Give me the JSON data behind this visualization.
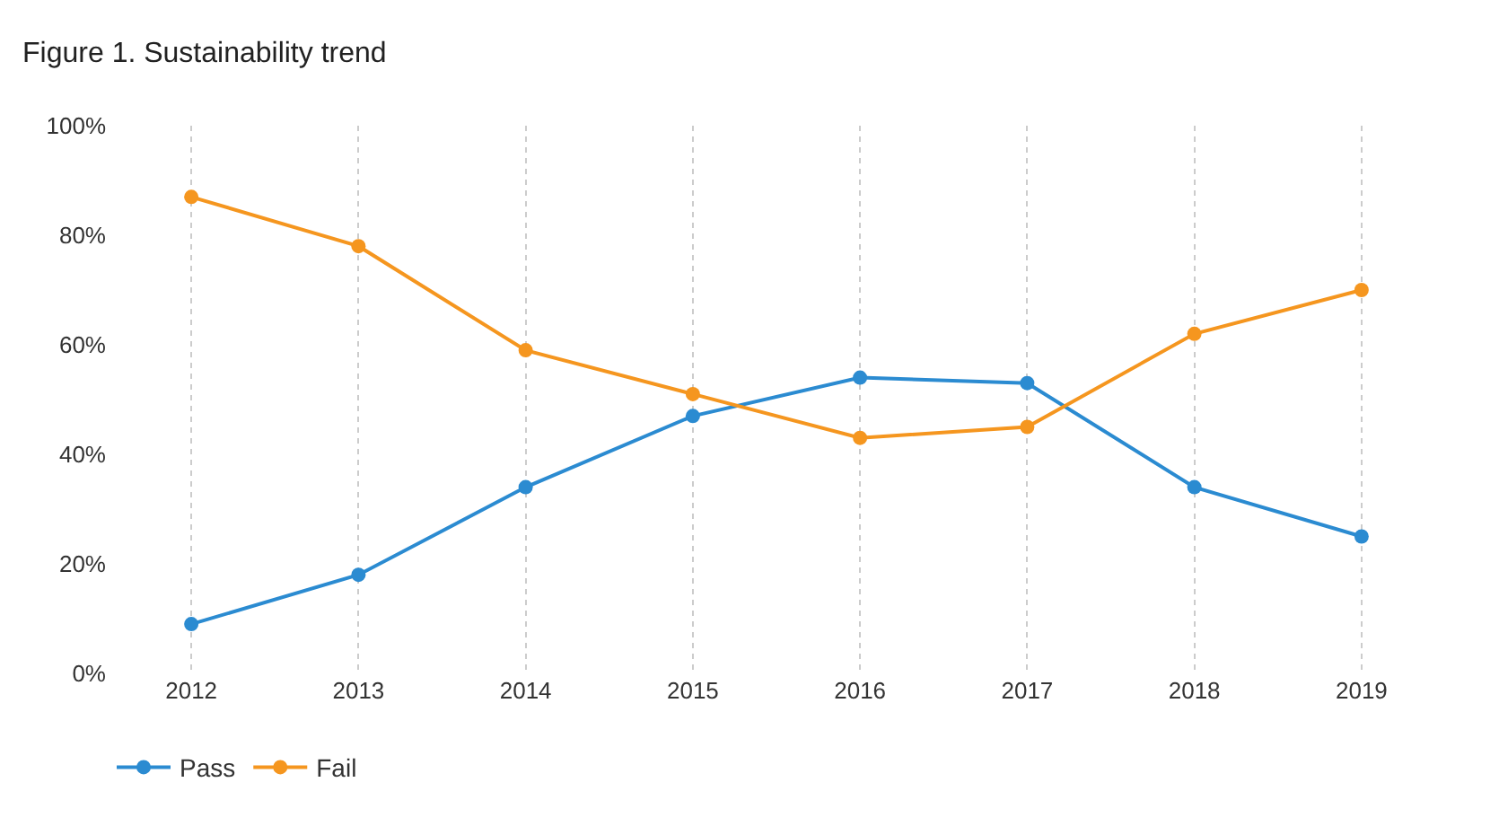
{
  "chart_data": {
    "type": "line",
    "title": "Figure 1. Sustainability trend",
    "categories": [
      "2012",
      "2013",
      "2014",
      "2015",
      "2016",
      "2017",
      "2018",
      "2019"
    ],
    "series": [
      {
        "name": "Pass",
        "color": "#2b8bd1",
        "values": [
          9,
          18,
          34,
          47,
          54,
          53,
          34,
          25
        ]
      },
      {
        "name": "Fail",
        "color": "#f5961f",
        "values": [
          87,
          78,
          59,
          51,
          43,
          45,
          62,
          70
        ]
      }
    ],
    "ylim": [
      0,
      100
    ],
    "yticks": [
      {
        "value": 0,
        "label": "0%"
      },
      {
        "value": 20,
        "label": "20%"
      },
      {
        "value": 40,
        "label": "40%"
      },
      {
        "value": 60,
        "label": "60%"
      },
      {
        "value": 80,
        "label": "80%"
      },
      {
        "value": 100,
        "label": "100%"
      }
    ],
    "grid": "x",
    "legend": "bottom left",
    "marker": "circle",
    "line_style": "solid"
  }
}
